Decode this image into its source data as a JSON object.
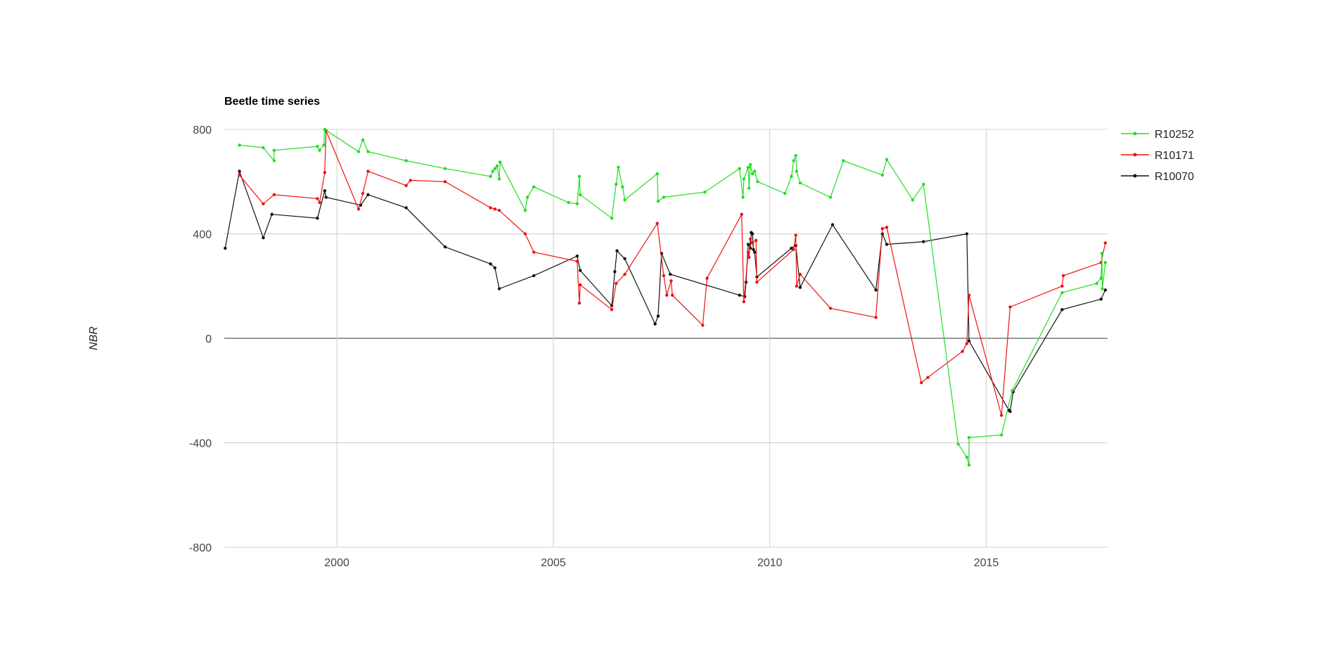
{
  "chart_data": {
    "type": "line",
    "title": "Beetle time series",
    "xlabel": "",
    "ylabel": "NBR",
    "x_type": "year",
    "xlim": [
      1997.4,
      2017.8
    ],
    "ylim": [
      -800,
      800
    ],
    "x_ticks": [
      2000,
      2005,
      2010,
      2015
    ],
    "y_ticks": [
      -800,
      -400,
      0,
      400,
      800
    ],
    "x_tick_labels": [
      "2000",
      "2005",
      "2010",
      "2015"
    ],
    "y_tick_labels": [
      "-800",
      "-400",
      "0",
      "400",
      "800"
    ],
    "grid": true,
    "legend_position": "right",
    "series": [
      {
        "name": "R10252",
        "color": "#22dd22",
        "points": [
          [
            1997.75,
            740
          ],
          [
            1998.3,
            730
          ],
          [
            1998.55,
            680
          ],
          [
            1998.55,
            720
          ],
          [
            1999.55,
            735
          ],
          [
            1999.6,
            720
          ],
          [
            1999.7,
            740
          ],
          [
            1999.72,
            800
          ],
          [
            2000.5,
            715
          ],
          [
            2000.6,
            760
          ],
          [
            2000.72,
            715
          ],
          [
            2001.6,
            680
          ],
          [
            2002.5,
            650
          ],
          [
            2003.55,
            620
          ],
          [
            2003.6,
            640
          ],
          [
            2003.65,
            650
          ],
          [
            2003.7,
            660
          ],
          [
            2003.75,
            610
          ],
          [
            2003.77,
            675
          ],
          [
            2004.35,
            490
          ],
          [
            2004.4,
            540
          ],
          [
            2004.55,
            580
          ],
          [
            2005.35,
            520
          ],
          [
            2005.55,
            515
          ],
          [
            2005.6,
            620
          ],
          [
            2005.62,
            550
          ],
          [
            2006.35,
            460
          ],
          [
            2006.45,
            590
          ],
          [
            2006.5,
            655
          ],
          [
            2006.6,
            580
          ],
          [
            2006.65,
            530
          ],
          [
            2007.4,
            630
          ],
          [
            2007.42,
            525
          ],
          [
            2007.55,
            540
          ],
          [
            2008.5,
            560
          ],
          [
            2009.3,
            650
          ],
          [
            2009.38,
            540
          ],
          [
            2009.4,
            610
          ],
          [
            2009.5,
            655
          ],
          [
            2009.52,
            575
          ],
          [
            2009.55,
            665
          ],
          [
            2009.6,
            630
          ],
          [
            2009.65,
            640
          ],
          [
            2009.72,
            600
          ],
          [
            2010.35,
            555
          ],
          [
            2010.5,
            620
          ],
          [
            2010.55,
            680
          ],
          [
            2010.6,
            700
          ],
          [
            2010.62,
            640
          ],
          [
            2010.7,
            595
          ],
          [
            2011.4,
            540
          ],
          [
            2011.7,
            680
          ],
          [
            2012.6,
            625
          ],
          [
            2012.7,
            685
          ],
          [
            2013.3,
            530
          ],
          [
            2013.55,
            590
          ],
          [
            2014.35,
            -405
          ],
          [
            2014.55,
            -455
          ],
          [
            2014.6,
            -485
          ],
          [
            2014.6,
            -380
          ],
          [
            2015.35,
            -370
          ],
          [
            2015.6,
            -200
          ],
          [
            2016.75,
            175
          ],
          [
            2017.55,
            210
          ],
          [
            2017.65,
            230
          ],
          [
            2017.67,
            325
          ],
          [
            2017.68,
            190
          ],
          [
            2017.75,
            290
          ]
        ]
      },
      {
        "name": "R10171",
        "color": "#ee1111",
        "points": [
          [
            1997.75,
            625
          ],
          [
            1998.3,
            515
          ],
          [
            1998.55,
            550
          ],
          [
            1999.55,
            535
          ],
          [
            1999.6,
            520
          ],
          [
            1999.72,
            635
          ],
          [
            1999.75,
            795
          ],
          [
            2000.5,
            495
          ],
          [
            2000.6,
            555
          ],
          [
            2000.72,
            640
          ],
          [
            2001.6,
            585
          ],
          [
            2001.7,
            605
          ],
          [
            2002.5,
            600
          ],
          [
            2003.55,
            500
          ],
          [
            2003.65,
            495
          ],
          [
            2003.75,
            490
          ],
          [
            2004.35,
            400
          ],
          [
            2004.55,
            330
          ],
          [
            2005.55,
            295
          ],
          [
            2005.6,
            135
          ],
          [
            2005.62,
            205
          ],
          [
            2006.35,
            110
          ],
          [
            2006.45,
            210
          ],
          [
            2006.65,
            245
          ],
          [
            2007.4,
            440
          ],
          [
            2007.55,
            240
          ],
          [
            2007.62,
            165
          ],
          [
            2007.72,
            220
          ],
          [
            2007.75,
            165
          ],
          [
            2008.45,
            50
          ],
          [
            2008.55,
            230
          ],
          [
            2009.35,
            475
          ],
          [
            2009.4,
            140
          ],
          [
            2009.5,
            330
          ],
          [
            2009.52,
            310
          ],
          [
            2009.55,
            380
          ],
          [
            2009.6,
            365
          ],
          [
            2009.68,
            375
          ],
          [
            2009.7,
            215
          ],
          [
            2010.55,
            340
          ],
          [
            2010.6,
            395
          ],
          [
            2010.62,
            200
          ],
          [
            2010.7,
            245
          ],
          [
            2011.4,
            115
          ],
          [
            2012.45,
            80
          ],
          [
            2012.6,
            420
          ],
          [
            2012.7,
            425
          ],
          [
            2013.5,
            -170
          ],
          [
            2013.65,
            -150
          ],
          [
            2014.45,
            -50
          ],
          [
            2014.55,
            -20
          ],
          [
            2014.6,
            165
          ],
          [
            2015.35,
            -295
          ],
          [
            2015.55,
            120
          ],
          [
            2016.75,
            200
          ],
          [
            2016.78,
            240
          ],
          [
            2017.65,
            290
          ],
          [
            2017.75,
            365
          ]
        ]
      },
      {
        "name": "R10070",
        "color": "#111111",
        "points": [
          [
            1997.42,
            345
          ],
          [
            1997.75,
            640
          ],
          [
            1998.3,
            385
          ],
          [
            1998.5,
            475
          ],
          [
            1999.55,
            460
          ],
          [
            1999.72,
            565
          ],
          [
            1999.75,
            540
          ],
          [
            2000.55,
            510
          ],
          [
            2000.72,
            550
          ],
          [
            2001.6,
            500
          ],
          [
            2002.5,
            350
          ],
          [
            2003.55,
            285
          ],
          [
            2003.65,
            270
          ],
          [
            2003.75,
            190
          ],
          [
            2004.55,
            240
          ],
          [
            2005.55,
            315
          ],
          [
            2005.62,
            260
          ],
          [
            2006.35,
            125
          ],
          [
            2006.42,
            255
          ],
          [
            2006.47,
            335
          ],
          [
            2006.65,
            305
          ],
          [
            2007.35,
            55
          ],
          [
            2007.42,
            85
          ],
          [
            2007.5,
            325
          ],
          [
            2007.7,
            245
          ],
          [
            2009.3,
            165
          ],
          [
            2009.42,
            160
          ],
          [
            2009.45,
            215
          ],
          [
            2009.5,
            360
          ],
          [
            2009.55,
            345
          ],
          [
            2009.57,
            405
          ],
          [
            2009.6,
            400
          ],
          [
            2009.62,
            340
          ],
          [
            2009.65,
            330
          ],
          [
            2009.7,
            235
          ],
          [
            2010.5,
            345
          ],
          [
            2010.6,
            355
          ],
          [
            2010.7,
            195
          ],
          [
            2011.45,
            435
          ],
          [
            2012.45,
            185
          ],
          [
            2012.6,
            400
          ],
          [
            2012.7,
            360
          ],
          [
            2013.55,
            370
          ],
          [
            2014.55,
            400
          ],
          [
            2014.6,
            -10
          ],
          [
            2015.52,
            -275
          ],
          [
            2015.55,
            -280
          ],
          [
            2015.62,
            -205
          ],
          [
            2016.75,
            110
          ],
          [
            2017.65,
            150
          ],
          [
            2017.75,
            185
          ]
        ]
      }
    ]
  }
}
